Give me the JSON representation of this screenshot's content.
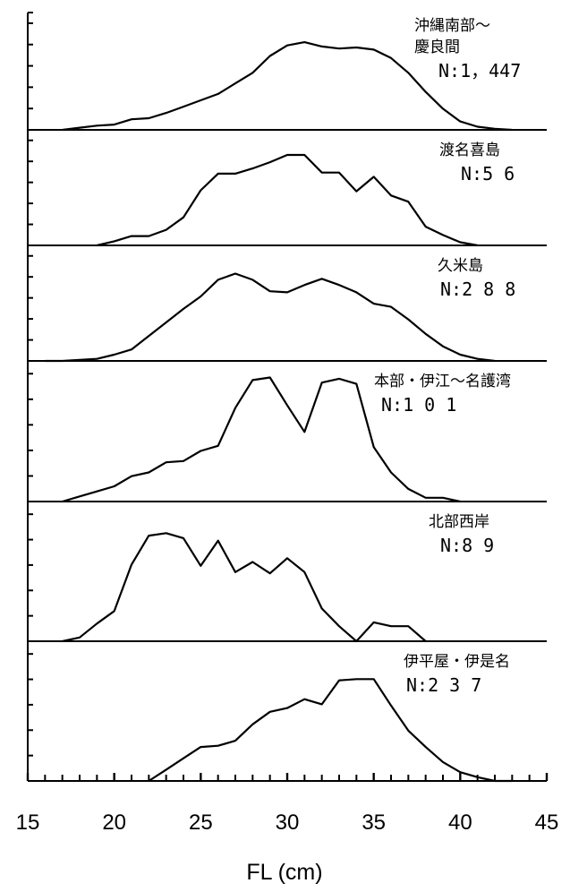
{
  "chart_data": {
    "type": "line",
    "layout": "stacked-panels",
    "xlabel": "FL (cm)",
    "xlim": [
      15,
      45
    ],
    "x_ticks": [
      15,
      20,
      25,
      30,
      35,
      40,
      45
    ],
    "x_minor_step": 1,
    "ylabel": "",
    "y_ticks_per_panel": 5,
    "grid": false,
    "legend": "none",
    "line_color": "#000000",
    "panels": [
      {
        "name": "沖縄南部～\n慶良間",
        "count_label": "N:1，447",
        "points": [
          [
            17,
            0
          ],
          [
            18,
            2
          ],
          [
            19,
            4
          ],
          [
            20,
            5
          ],
          [
            21,
            10
          ],
          [
            22,
            11
          ],
          [
            23,
            16
          ],
          [
            24,
            22
          ],
          [
            25,
            28
          ],
          [
            26,
            34
          ],
          [
            27,
            44
          ],
          [
            28,
            54
          ],
          [
            29,
            70
          ],
          [
            30,
            80
          ],
          [
            31,
            83
          ],
          [
            32,
            79
          ],
          [
            33,
            77
          ],
          [
            34,
            78
          ],
          [
            35,
            76
          ],
          [
            36,
            68
          ],
          [
            37,
            54
          ],
          [
            38,
            36
          ],
          [
            39,
            20
          ],
          [
            40,
            8
          ],
          [
            41,
            3
          ],
          [
            42,
            1
          ],
          [
            43,
            0
          ]
        ]
      },
      {
        "name": "渡名喜島",
        "count_label": "N:5 6",
        "points": [
          [
            19,
            0
          ],
          [
            20,
            4
          ],
          [
            21,
            9
          ],
          [
            22,
            9
          ],
          [
            23,
            15
          ],
          [
            24,
            27
          ],
          [
            25,
            53
          ],
          [
            26,
            69
          ],
          [
            27,
            69
          ],
          [
            28,
            74
          ],
          [
            29,
            80
          ],
          [
            30,
            87
          ],
          [
            31,
            87
          ],
          [
            32,
            70
          ],
          [
            33,
            70
          ],
          [
            34,
            52
          ],
          [
            35,
            66
          ],
          [
            36,
            48
          ],
          [
            37,
            42
          ],
          [
            38,
            18
          ],
          [
            39,
            10
          ],
          [
            40,
            3
          ],
          [
            41,
            0
          ]
        ]
      },
      {
        "name": "久米島",
        "count_label": "N:2 8 8",
        "points": [
          [
            16,
            0
          ],
          [
            17,
            0
          ],
          [
            18,
            1
          ],
          [
            19,
            2
          ],
          [
            20,
            6
          ],
          [
            21,
            11
          ],
          [
            22,
            24
          ],
          [
            23,
            37
          ],
          [
            24,
            50
          ],
          [
            25,
            62
          ],
          [
            26,
            78
          ],
          [
            27,
            84
          ],
          [
            28,
            78
          ],
          [
            29,
            67
          ],
          [
            30,
            66
          ],
          [
            31,
            73
          ],
          [
            32,
            79
          ],
          [
            33,
            73
          ],
          [
            34,
            66
          ],
          [
            35,
            55
          ],
          [
            36,
            52
          ],
          [
            37,
            40
          ],
          [
            38,
            26
          ],
          [
            39,
            14
          ],
          [
            40,
            6
          ],
          [
            41,
            2
          ],
          [
            42,
            0
          ]
        ]
      },
      {
        "name": "本部・伊江～名護湾",
        "count_label": "N:1 0 1",
        "points": [
          [
            17,
            0
          ],
          [
            18,
            4
          ],
          [
            19,
            8
          ],
          [
            20,
            12
          ],
          [
            21,
            20
          ],
          [
            22,
            23
          ],
          [
            23,
            31
          ],
          [
            24,
            32
          ],
          [
            25,
            40
          ],
          [
            26,
            44
          ],
          [
            27,
            74
          ],
          [
            28,
            96
          ],
          [
            29,
            98
          ],
          [
            30,
            76
          ],
          [
            31,
            55
          ],
          [
            32,
            94
          ],
          [
            33,
            97
          ],
          [
            34,
            93
          ],
          [
            35,
            43
          ],
          [
            36,
            23
          ],
          [
            37,
            10
          ],
          [
            38,
            3
          ],
          [
            39,
            3
          ],
          [
            40,
            0
          ]
        ]
      },
      {
        "name": "北部西岸",
        "count_label": "N:8 9",
        "points": [
          [
            17,
            0
          ],
          [
            18,
            3
          ],
          [
            19,
            14
          ],
          [
            20,
            24
          ],
          [
            21,
            61
          ],
          [
            22,
            84
          ],
          [
            23,
            86
          ],
          [
            24,
            82
          ],
          [
            25,
            60
          ],
          [
            26,
            80
          ],
          [
            27,
            55
          ],
          [
            28,
            63
          ],
          [
            29,
            54
          ],
          [
            30,
            66
          ],
          [
            31,
            55
          ],
          [
            32,
            26
          ],
          [
            33,
            12
          ],
          [
            34,
            0
          ],
          [
            35,
            15
          ],
          [
            36,
            12
          ],
          [
            37,
            12
          ],
          [
            38,
            0
          ]
        ]
      },
      {
        "name": "伊平屋・伊是名",
        "count_label": "N:2 3 7",
        "points": [
          [
            22,
            0
          ],
          [
            23,
            9
          ],
          [
            24,
            18
          ],
          [
            25,
            27
          ],
          [
            26,
            28
          ],
          [
            27,
            32
          ],
          [
            28,
            45
          ],
          [
            29,
            55
          ],
          [
            30,
            58
          ],
          [
            31,
            65
          ],
          [
            32,
            61
          ],
          [
            33,
            80
          ],
          [
            34,
            81
          ],
          [
            35,
            81
          ],
          [
            36,
            60
          ],
          [
            37,
            40
          ],
          [
            38,
            27
          ],
          [
            39,
            15
          ],
          [
            40,
            7
          ],
          [
            41,
            3
          ],
          [
            42,
            0
          ],
          [
            43,
            0
          ]
        ]
      }
    ]
  }
}
